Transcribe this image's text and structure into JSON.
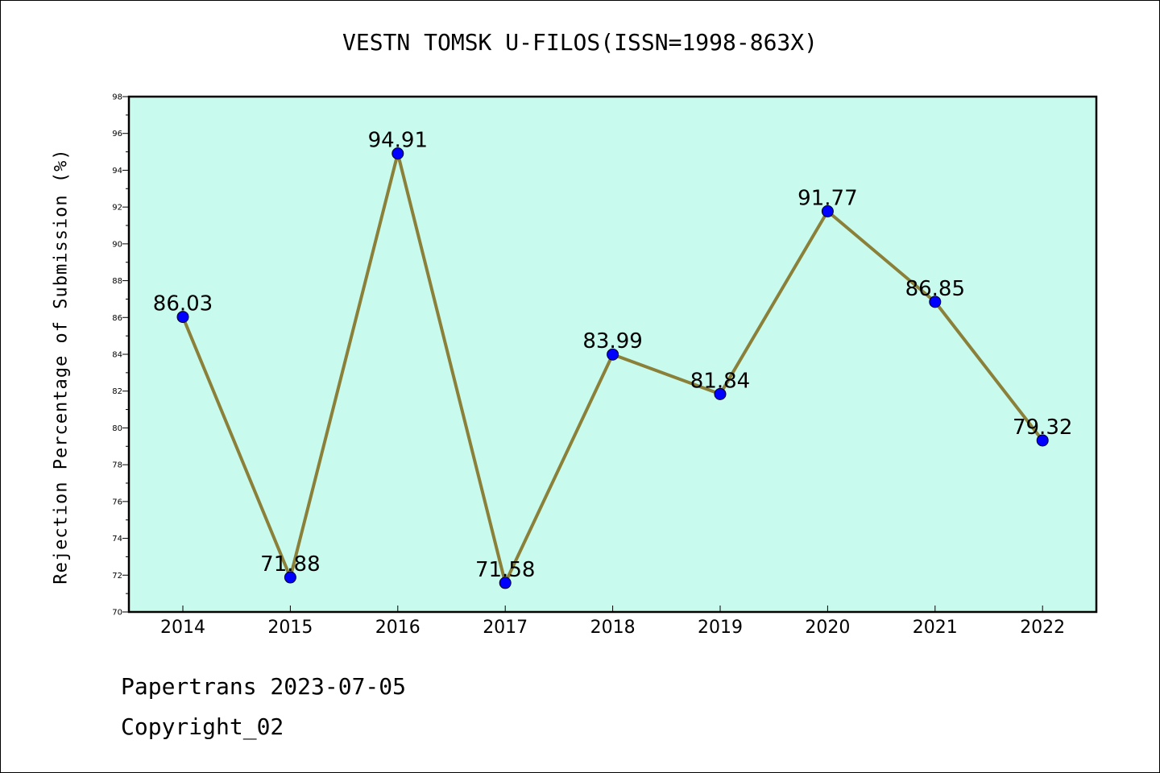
{
  "chart_data": {
    "type": "line",
    "title": "VESTN TOMSK U-FILOS(ISSN=1998-863X)",
    "xlabel": "",
    "ylabel": "Rejection Percentage of Submission (%)",
    "categories": [
      "2014",
      "2015",
      "2016",
      "2017",
      "2018",
      "2019",
      "2020",
      "2021",
      "2022"
    ],
    "series": [
      {
        "values": [
          86.03,
          71.88,
          94.91,
          71.58,
          83.99,
          81.84,
          91.77,
          86.85,
          79.32
        ],
        "labels": [
          "86.03",
          "71.88",
          "94.91",
          "71.58",
          "83.99",
          "81.84",
          "91.77",
          "86.85",
          "79.32"
        ]
      }
    ],
    "ylim": [
      70,
      98
    ],
    "yticks": [
      "70",
      "72",
      "74",
      "76",
      "78",
      "80",
      "82",
      "84",
      "86",
      "88",
      "90",
      "92",
      "94",
      "96",
      "98"
    ],
    "grid": false,
    "legend": "none",
    "colors": {
      "plot_background": "#c8fbee",
      "line": "#8b8039",
      "marker": "#0000ff"
    }
  },
  "footer": {
    "line1": "Papertrans 2023-07-05",
    "line2": "Copyright_02"
  }
}
